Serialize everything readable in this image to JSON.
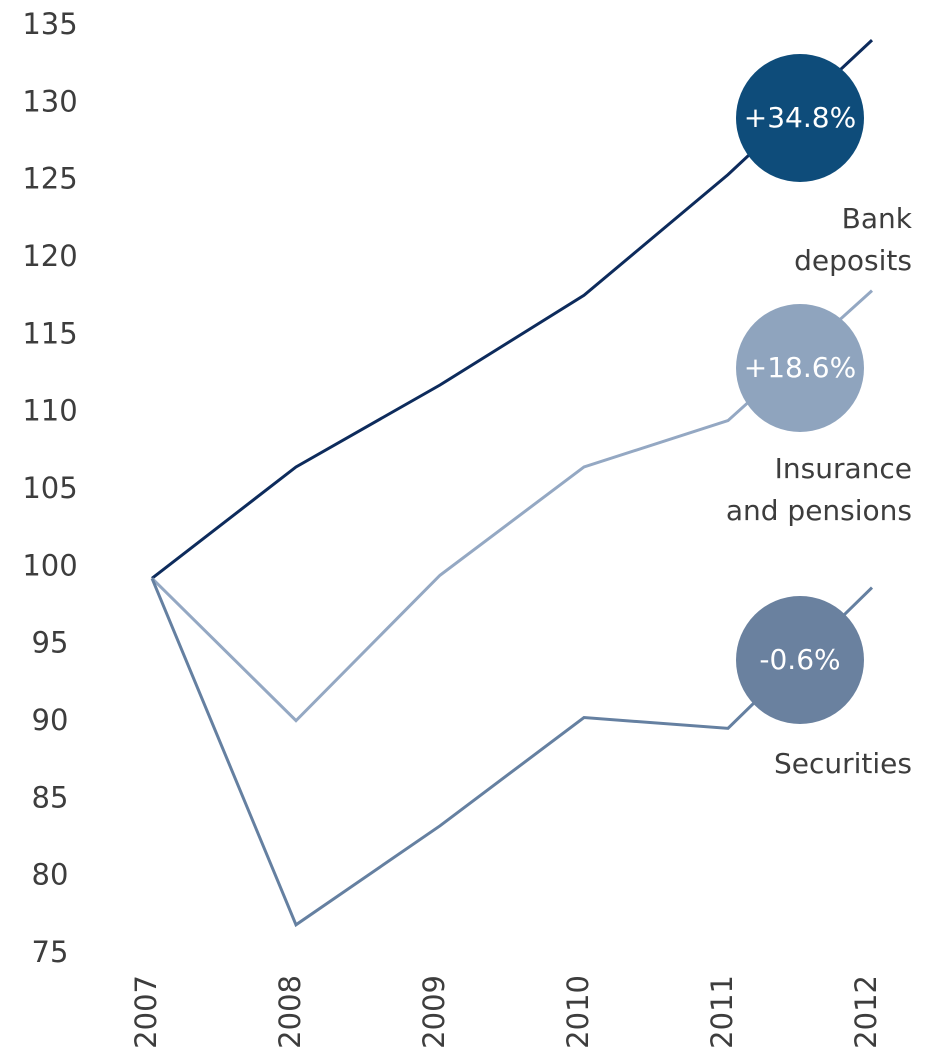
{
  "chart_data": {
    "type": "line",
    "categories": [
      "2007",
      "2008",
      "2009",
      "2010",
      "2011",
      "2012"
    ],
    "ylim": [
      75,
      135
    ],
    "yticks": [
      75,
      80,
      85,
      90,
      95,
      100,
      105,
      110,
      115,
      120,
      125,
      130,
      135
    ],
    "grid": false,
    "series": [
      {
        "name": "Bank deposits",
        "color": "#0d2b5c",
        "badge_color": "#0e4c7a",
        "change_label": "+34.8%",
        "values": [
          100,
          107.2,
          112.5,
          118.3,
          126.1,
          134.8
        ]
      },
      {
        "name": "Insurance and pensions",
        "color": "#94a8c3",
        "badge_color": "#8fa4be",
        "change_label": "+18.6%",
        "values": [
          100,
          90.8,
          100.2,
          107.2,
          110.2,
          118.6
        ]
      },
      {
        "name": "Securities",
        "color": "#6580a1",
        "badge_color": "#6a819f",
        "change_label": "-0.6%",
        "values": [
          100,
          77.6,
          84.0,
          91.0,
          90.3,
          99.4
        ]
      }
    ]
  }
}
